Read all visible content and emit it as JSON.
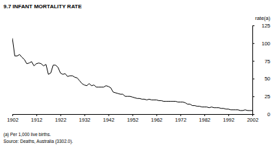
{
  "chart_data": {
    "type": "line",
    "title": "9.7 INFANT MORTALITY RATE",
    "ylabel": "rate(a)",
    "notes": [
      "(a) Per 1,000 live births.",
      "Source: Deaths, Australia (3302.0)."
    ],
    "color": "#000000",
    "x": [
      1902,
      1903,
      1904,
      1905,
      1906,
      1907,
      1908,
      1909,
      1910,
      1911,
      1912,
      1913,
      1914,
      1915,
      1916,
      1917,
      1918,
      1919,
      1920,
      1921,
      1922,
      1923,
      1924,
      1925,
      1926,
      1927,
      1928,
      1929,
      1930,
      1931,
      1932,
      1933,
      1934,
      1935,
      1936,
      1937,
      1938,
      1939,
      1940,
      1941,
      1942,
      1943,
      1944,
      1945,
      1946,
      1947,
      1948,
      1949,
      1950,
      1951,
      1952,
      1953,
      1954,
      1955,
      1956,
      1957,
      1958,
      1959,
      1960,
      1961,
      1962,
      1963,
      1964,
      1965,
      1966,
      1967,
      1968,
      1969,
      1970,
      1971,
      1972,
      1973,
      1974,
      1975,
      1976,
      1977,
      1978,
      1979,
      1980,
      1981,
      1982,
      1983,
      1984,
      1985,
      1986,
      1987,
      1988,
      1989,
      1990,
      1991,
      1992,
      1993,
      1994,
      1995,
      1996,
      1997,
      1998,
      1999,
      2000,
      2001,
      2002
    ],
    "values": [
      107,
      82,
      82,
      84,
      80,
      77,
      71,
      72,
      74,
      68,
      71,
      72,
      71,
      68,
      70,
      56,
      58,
      69,
      69,
      66,
      58,
      56,
      57,
      53,
      54,
      54,
      52,
      51,
      47,
      43,
      41,
      40,
      43,
      40,
      41,
      38,
      38,
      38,
      38,
      40,
      39,
      37,
      31,
      30,
      29,
      28,
      28,
      25,
      25,
      25,
      24,
      23,
      22,
      22,
      21,
      21,
      20,
      21,
      20,
      20,
      20,
      19,
      19,
      18,
      18,
      18,
      18,
      18,
      18,
      17,
      17,
      17,
      16,
      14,
      14,
      12,
      12,
      11,
      11,
      10,
      10,
      10,
      9,
      10,
      9,
      9,
      9,
      8,
      8,
      7,
      7,
      6,
      6,
      6,
      6,
      5,
      5,
      6,
      5,
      5,
      5
    ],
    "xlim": [
      1902,
      2002
    ],
    "ylim": [
      0,
      125
    ],
    "xticks": [
      1902,
      1912,
      1922,
      1932,
      1942,
      1952,
      1962,
      1972,
      1982,
      1992,
      2002
    ],
    "yticks": [
      0,
      25,
      50,
      75,
      100,
      125
    ],
    "grid": false
  }
}
